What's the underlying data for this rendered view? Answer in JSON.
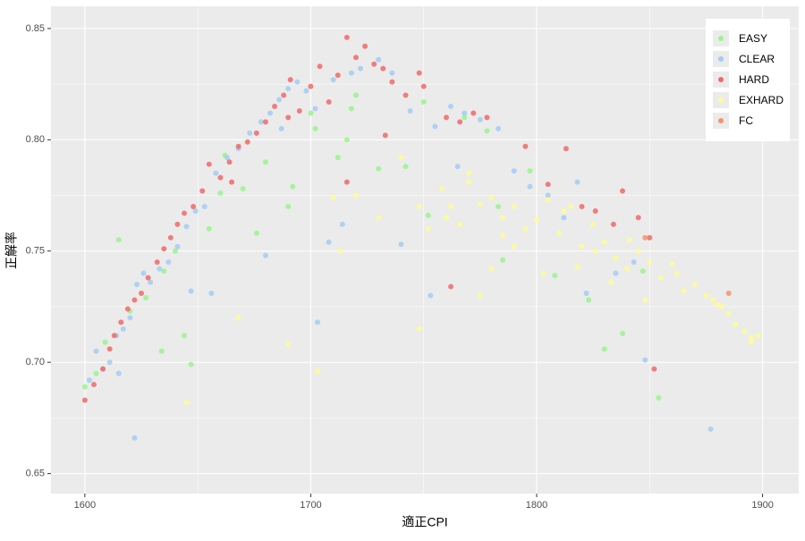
{
  "chart_data": {
    "type": "scatter",
    "x_label": "適正CPI",
    "y_label": "正解率",
    "xlim": [
      1585,
      1916
    ],
    "ylim": [
      0.641,
      0.86
    ],
    "xticks": [
      1600,
      1700,
      1800,
      1900
    ],
    "yticks": [
      {
        "value": 0.65,
        "label": "0.65"
      },
      {
        "value": 0.7,
        "label": "0.70"
      },
      {
        "value": 0.75,
        "label": "0.75"
      },
      {
        "value": 0.8,
        "label": "0.80"
      },
      {
        "value": 0.85,
        "label": "0.85"
      }
    ],
    "xminorticks": [
      1650,
      1750,
      1850
    ],
    "yminorticks": [
      0.675,
      0.725,
      0.775,
      0.825
    ],
    "grid": true,
    "legend_position": "top-right",
    "series": [
      {
        "name": "EASY",
        "color": "#99f58c",
        "x": [
          1600,
          1605,
          1609,
          1615,
          1620,
          1627,
          1634,
          1640,
          1644,
          1647,
          1655,
          1662,
          1670,
          1676,
          1680,
          1690,
          1692,
          1702,
          1712,
          1718,
          1720,
          1730,
          1742,
          1750,
          1768,
          1778,
          1785,
          1797,
          1808,
          1823,
          1830,
          1847,
          1854,
          1635,
          1660,
          1700,
          1716,
          1752,
          1783,
          1838
        ],
        "values": [
          0.689,
          0.695,
          0.709,
          0.755,
          0.723,
          0.729,
          0.705,
          0.75,
          0.712,
          0.699,
          0.76,
          0.793,
          0.778,
          0.758,
          0.79,
          0.77,
          0.779,
          0.805,
          0.792,
          0.814,
          0.82,
          0.787,
          0.788,
          0.817,
          0.81,
          0.804,
          0.746,
          0.786,
          0.739,
          0.728,
          0.706,
          0.741,
          0.684,
          0.741,
          0.776,
          0.812,
          0.8,
          0.766,
          0.77,
          0.713
        ]
      },
      {
        "name": "CLEAR",
        "color": "#a3ccf5",
        "x": [
          1602,
          1605,
          1608,
          1611,
          1614,
          1617,
          1620,
          1623,
          1626,
          1629,
          1633,
          1637,
          1641,
          1645,
          1649,
          1653,
          1658,
          1663,
          1668,
          1673,
          1678,
          1682,
          1686,
          1690,
          1694,
          1698,
          1702,
          1710,
          1718,
          1722,
          1730,
          1736,
          1744,
          1755,
          1762,
          1768,
          1775,
          1790,
          1805,
          1818,
          1822,
          1835,
          1848,
          1877,
          1622,
          1647,
          1680,
          1703,
          1708,
          1740,
          1615,
          1656,
          1687,
          1714,
          1753,
          1765,
          1783,
          1797,
          1812,
          1843
        ],
        "values": [
          0.692,
          0.705,
          0.697,
          0.7,
          0.712,
          0.715,
          0.72,
          0.735,
          0.74,
          0.736,
          0.742,
          0.745,
          0.752,
          0.761,
          0.768,
          0.77,
          0.785,
          0.792,
          0.796,
          0.803,
          0.808,
          0.812,
          0.818,
          0.823,
          0.826,
          0.822,
          0.814,
          0.827,
          0.83,
          0.832,
          0.836,
          0.83,
          0.813,
          0.806,
          0.815,
          0.812,
          0.809,
          0.786,
          0.775,
          0.781,
          0.731,
          0.74,
          0.701,
          0.67,
          0.666,
          0.732,
          0.748,
          0.718,
          0.754,
          0.753,
          0.695,
          0.731,
          0.805,
          0.762,
          0.73,
          0.788,
          0.805,
          0.779,
          0.765,
          0.745
        ]
      },
      {
        "name": "HARD",
        "color": "#f06a6a",
        "x": [
          1600,
          1604,
          1608,
          1611,
          1613,
          1616,
          1619,
          1622,
          1625,
          1628,
          1632,
          1635,
          1638,
          1641,
          1644,
          1648,
          1652,
          1655,
          1660,
          1664,
          1668,
          1672,
          1676,
          1680,
          1684,
          1688,
          1691,
          1695,
          1700,
          1704,
          1708,
          1712,
          1716,
          1720,
          1724,
          1728,
          1732,
          1736,
          1742,
          1748,
          1750,
          1760,
          1766,
          1772,
          1778,
          1795,
          1805,
          1813,
          1820,
          1826,
          1834,
          1838,
          1845,
          1850,
          1852,
          1665,
          1690,
          1716,
          1733,
          1762
        ],
        "values": [
          0.683,
          0.69,
          0.697,
          0.706,
          0.712,
          0.718,
          0.724,
          0.728,
          0.731,
          0.738,
          0.745,
          0.751,
          0.756,
          0.762,
          0.767,
          0.77,
          0.777,
          0.789,
          0.783,
          0.79,
          0.797,
          0.799,
          0.803,
          0.808,
          0.815,
          0.82,
          0.827,
          0.813,
          0.824,
          0.833,
          0.817,
          0.829,
          0.846,
          0.837,
          0.842,
          0.834,
          0.832,
          0.826,
          0.82,
          0.83,
          0.824,
          0.81,
          0.808,
          0.812,
          0.81,
          0.797,
          0.78,
          0.796,
          0.77,
          0.768,
          0.762,
          0.777,
          0.765,
          0.756,
          0.697,
          0.781,
          0.81,
          0.781,
          0.802,
          0.734
        ]
      },
      {
        "name": "EXHARD",
        "color": "#fdfd96",
        "x": [
          1690,
          1703,
          1710,
          1720,
          1730,
          1740,
          1748,
          1752,
          1758,
          1762,
          1766,
          1770,
          1775,
          1780,
          1785,
          1790,
          1795,
          1800,
          1805,
          1810,
          1815,
          1820,
          1825,
          1830,
          1835,
          1840,
          1845,
          1850,
          1855,
          1860,
          1865,
          1870,
          1875,
          1878,
          1882,
          1885,
          1888,
          1892,
          1895,
          1898,
          1760,
          1775,
          1790,
          1803,
          1818,
          1833,
          1848,
          1862,
          1880,
          1895,
          1770,
          1785,
          1812,
          1826,
          1841,
          1645,
          1668,
          1713,
          1748,
          1780
        ],
        "values": [
          0.708,
          0.696,
          0.774,
          0.775,
          0.765,
          0.792,
          0.715,
          0.76,
          0.778,
          0.77,
          0.762,
          0.785,
          0.771,
          0.774,
          0.765,
          0.77,
          0.76,
          0.764,
          0.773,
          0.758,
          0.77,
          0.752,
          0.762,
          0.754,
          0.747,
          0.742,
          0.75,
          0.745,
          0.738,
          0.744,
          0.732,
          0.735,
          0.73,
          0.728,
          0.725,
          0.722,
          0.717,
          0.714,
          0.711,
          0.712,
          0.765,
          0.73,
          0.752,
          0.74,
          0.743,
          0.736,
          0.728,
          0.74,
          0.726,
          0.709,
          0.781,
          0.757,
          0.768,
          0.75,
          0.755,
          0.682,
          0.72,
          0.75,
          0.77,
          0.742
        ]
      },
      {
        "name": "FC",
        "color": "#f5956a",
        "x": [
          1848,
          1885
        ],
        "values": [
          0.756,
          0.731
        ]
      }
    ]
  }
}
